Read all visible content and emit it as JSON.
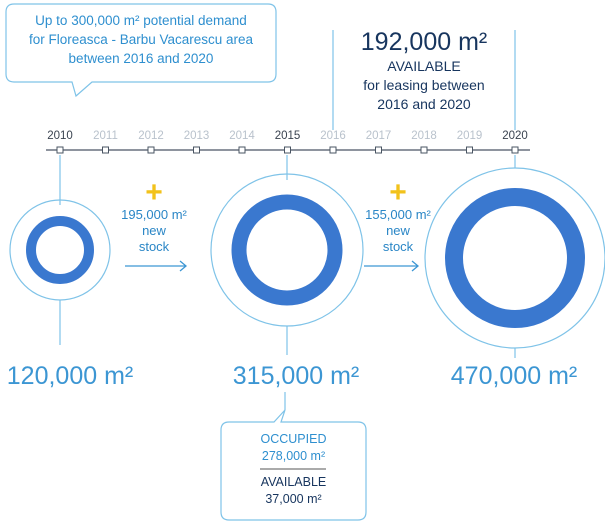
{
  "callout": {
    "line1": "Up to 300,000 m² potential demand",
    "line2": "for Floreasca - Barbu Vacarescu area",
    "line3": "between 2016 and 2020"
  },
  "available_2020": {
    "value": "192,000 m²",
    "line1": "AVAILABLE",
    "line2": "for leasing between",
    "line3": "2016 and 2020"
  },
  "timeline": {
    "years": [
      "2010",
      "2011",
      "2012",
      "2013",
      "2014",
      "2015",
      "2016",
      "2017",
      "2018",
      "2019",
      "2020"
    ],
    "highlighted": [
      "2010",
      "2015",
      "2020"
    ]
  },
  "steps": [
    {
      "plus": "+",
      "line1": "195,000 m²",
      "line2": "new",
      "line3": "stock"
    },
    {
      "plus": "+",
      "line1": "155,000 m²",
      "line2": "new",
      "line3": "stock"
    }
  ],
  "totals": [
    "120,000 m²",
    "315,000 m²",
    "470,000 m²"
  ],
  "breakdown_2015": {
    "occupied_label": "OCCUPIED",
    "occupied_value": "278,000 m²",
    "available_label": "AVAILABLE",
    "available_value": "37,000 m²"
  },
  "colors": {
    "accent": "#3a78cf",
    "light_line": "#7fc3e8",
    "plus": "#f2c21b",
    "dark_text": "#17355e",
    "muted_year": "#b9c2cc"
  }
}
